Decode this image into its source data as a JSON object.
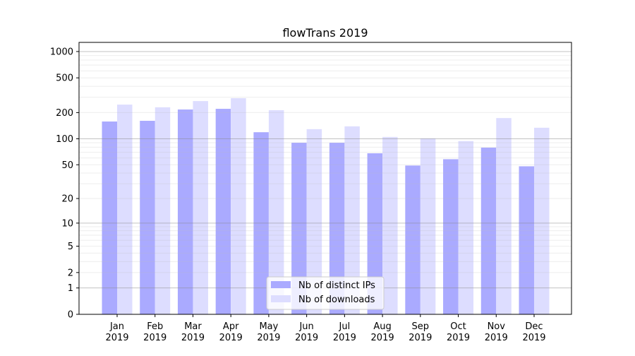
{
  "chart_data": {
    "type": "bar",
    "title": "flowTrans 2019",
    "xlabel": "",
    "ylabel": "",
    "yscale": "log10(y+1)",
    "ylim": [
      0,
      1200
    ],
    "yticks": [
      0,
      1,
      2,
      5,
      10,
      20,
      50,
      100,
      200,
      500,
      1000
    ],
    "grid": true,
    "legend_position": "bottom-center",
    "categories": [
      "Jan\n2019",
      "Feb\n2019",
      "Mar\n2019",
      "Apr\n2019",
      "May\n2019",
      "Jun\n2019",
      "Jul\n2019",
      "Aug\n2019",
      "Sep\n2019",
      "Oct\n2019",
      "Nov\n2019",
      "Dec\n2019"
    ],
    "series": [
      {
        "name": "Nb of distinct IPs",
        "color": "#aaaaff",
        "values": [
          158,
          161,
          217,
          221,
          119,
          90,
          90,
          68,
          49,
          58,
          79,
          48
        ]
      },
      {
        "name": "Nb of downloads",
        "color": "#ddddff",
        "values": [
          247,
          230,
          271,
          293,
          213,
          129,
          139,
          105,
          101,
          94,
          173,
          134
        ]
      }
    ]
  }
}
